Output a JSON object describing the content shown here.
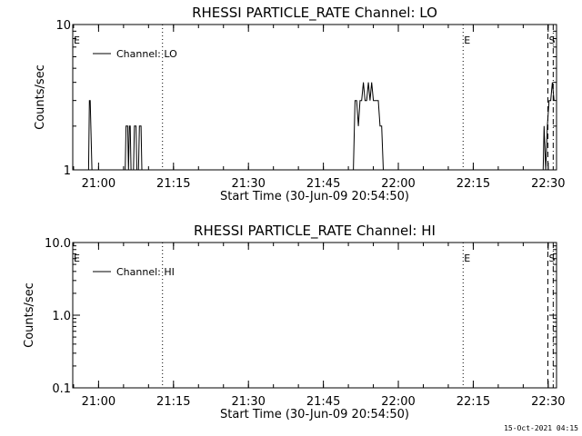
{
  "chart_data": [
    {
      "type": "line",
      "title": "RHESSI PARTICLE_RATE Channel: LO",
      "xlabel": "Start Time (30-Jun-09 20:54:50)",
      "ylabel": "Counts/sec",
      "y_scale": "log",
      "ylim": [
        1,
        10
      ],
      "yticks": [
        1,
        10
      ],
      "ytick_labels": [
        "1",
        "10"
      ],
      "xlim": [
        "20:54:50",
        "22:31:40"
      ],
      "xticks": [
        "21:00",
        "21:15",
        "21:30",
        "21:45",
        "22:00",
        "22:15",
        "22:30"
      ],
      "legend": {
        "label": "Channel: LO",
        "position": "top-left"
      },
      "series": [
        {
          "name": "Channel: LO",
          "points": [
            [
              "20:58:00",
              1
            ],
            [
              "20:58:10",
              3
            ],
            [
              "20:58:20",
              3
            ],
            [
              "20:58:40",
              1
            ],
            [
              "21:05:20",
              1
            ],
            [
              "21:05:30",
              2
            ],
            [
              "21:05:50",
              2
            ],
            [
              "21:06:00",
              1
            ],
            [
              "21:06:10",
              2
            ],
            [
              "21:06:20",
              2
            ],
            [
              "21:06:30",
              1
            ],
            [
              "21:07:00",
              1
            ],
            [
              "21:07:10",
              2
            ],
            [
              "21:07:30",
              2
            ],
            [
              "21:07:40",
              1
            ],
            [
              "21:08:00",
              1
            ],
            [
              "21:08:10",
              2
            ],
            [
              "21:08:30",
              2
            ],
            [
              "21:08:40",
              1
            ],
            [
              "21:51:00",
              1
            ],
            [
              "21:51:20",
              3
            ],
            [
              "21:51:40",
              3
            ],
            [
              "21:52:00",
              2
            ],
            [
              "21:52:20",
              3
            ],
            [
              "21:52:40",
              3
            ],
            [
              "21:53:00",
              4
            ],
            [
              "21:53:20",
              3
            ],
            [
              "21:53:40",
              3
            ],
            [
              "21:54:00",
              4
            ],
            [
              "21:54:20",
              3
            ],
            [
              "21:54:40",
              4
            ],
            [
              "21:55:00",
              3
            ],
            [
              "21:55:20",
              3
            ],
            [
              "21:56:00",
              3
            ],
            [
              "21:56:20",
              2
            ],
            [
              "21:56:40",
              2
            ],
            [
              "21:57:00",
              1
            ],
            [
              "22:29:00",
              1
            ],
            [
              "22:29:10",
              2
            ],
            [
              "22:29:30",
              1
            ],
            [
              "22:29:50",
              2
            ],
            [
              "22:30:10",
              3
            ],
            [
              "22:30:30",
              3
            ],
            [
              "22:30:50",
              4
            ],
            [
              "22:31:10",
              3
            ]
          ]
        }
      ],
      "annotations": [
        {
          "label": "E",
          "time": "20:54:50",
          "line": "none"
        },
        {
          "label": "",
          "time": "21:12:48",
          "line": "dotted"
        },
        {
          "label": "E",
          "time": "22:12:58",
          "line": "dotted"
        },
        {
          "label": "S",
          "time": "22:29:56",
          "line": "dashed"
        },
        {
          "label": "",
          "time": "22:31:00",
          "line": "dash-dot"
        }
      ]
    },
    {
      "type": "line",
      "title": "RHESSI PARTICLE_RATE Channel: HI",
      "xlabel": "Start Time (30-Jun-09 20:54:50)",
      "ylabel": "Counts/sec",
      "y_scale": "log",
      "ylim": [
        0.1,
        10
      ],
      "yticks": [
        0.1,
        1,
        10
      ],
      "ytick_labels": [
        "0.1",
        "1.0",
        "10.0"
      ],
      "xlim": [
        "20:54:50",
        "22:31:40"
      ],
      "xticks": [
        "21:00",
        "21:15",
        "21:30",
        "21:45",
        "22:00",
        "22:15",
        "22:30"
      ],
      "legend": {
        "label": "Channel: HI",
        "position": "top-left"
      },
      "series": [
        {
          "name": "Channel: HI",
          "points": []
        }
      ],
      "annotations": [
        {
          "label": "E",
          "time": "20:54:50",
          "line": "none"
        },
        {
          "label": "",
          "time": "21:12:48",
          "line": "dotted"
        },
        {
          "label": "E",
          "time": "22:12:58",
          "line": "dotted"
        },
        {
          "label": "S",
          "time": "22:29:56",
          "line": "dashed"
        },
        {
          "label": "",
          "time": "22:31:00",
          "line": "dash-dot"
        }
      ]
    }
  ],
  "footer": {
    "timestamp": "15-Oct-2021 04:15"
  },
  "colors": {
    "background": "#ffffff",
    "foreground": "#000000"
  }
}
